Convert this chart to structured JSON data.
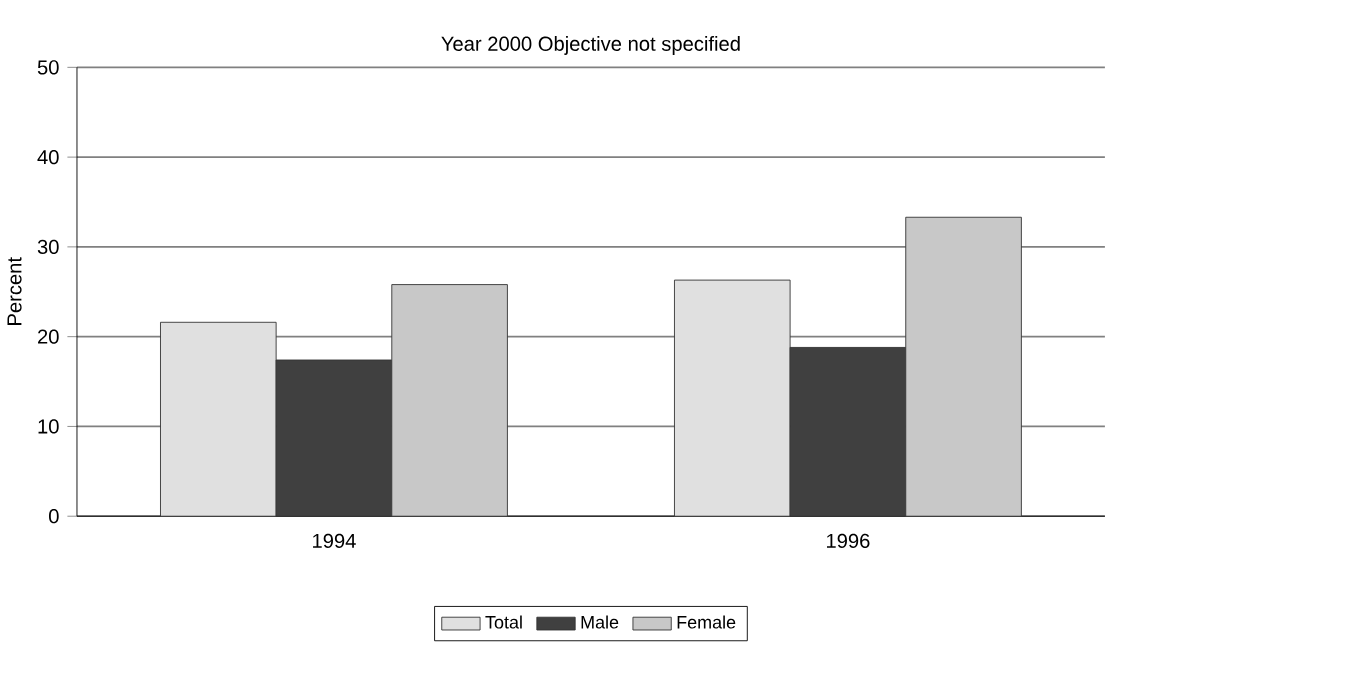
{
  "chart_data": {
    "type": "bar",
    "title": "Year 2000 Objective not specified",
    "ylabel": "Percent",
    "categories": [
      "1994",
      "1996"
    ],
    "series": [
      {
        "name": "Total",
        "color": "#e0e0e0",
        "values": [
          21.6,
          26.3
        ]
      },
      {
        "name": "Male",
        "color": "#404040",
        "values": [
          17.4,
          18.8
        ]
      },
      {
        "name": "Female",
        "color": "#c8c8c8",
        "values": [
          25.8,
          33.3
        ]
      }
    ],
    "ylim": [
      0,
      50
    ],
    "yticks": [
      0,
      10,
      20,
      30,
      40,
      50
    ],
    "grid": "y",
    "legend": "bottom"
  }
}
